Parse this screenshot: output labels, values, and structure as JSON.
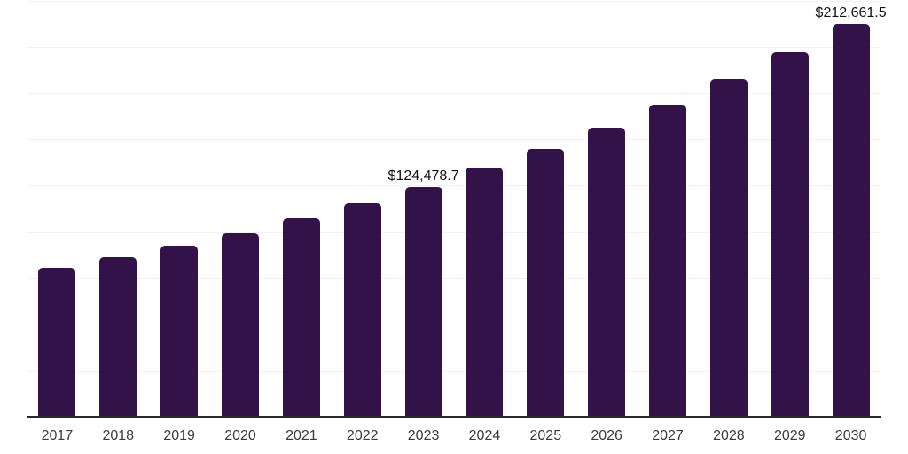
{
  "chart_data": {
    "type": "bar",
    "title": "",
    "xlabel": "",
    "ylabel": "",
    "categories": [
      "2017",
      "2018",
      "2019",
      "2020",
      "2021",
      "2022",
      "2023",
      "2024",
      "2025",
      "2026",
      "2027",
      "2028",
      "2029",
      "2030"
    ],
    "values": [
      80600,
      86400,
      92600,
      99300,
      107500,
      115600,
      124478.7,
      134800,
      144900,
      156400,
      168900,
      182800,
      197200,
      212661.5
    ],
    "data_labels": {
      "2023": "$124,478.7",
      "2030": "$212,661.5"
    },
    "ylim": [
      0,
      225000
    ],
    "grid_step": 25000,
    "grid": "horizontal",
    "legend_position": "none",
    "colors": {
      "bar": "#331149",
      "axis_line": "#2b2b2b",
      "gridline": "#f2f2f2",
      "tick_label": "#3a3a3a",
      "data_label": "#111111"
    }
  }
}
